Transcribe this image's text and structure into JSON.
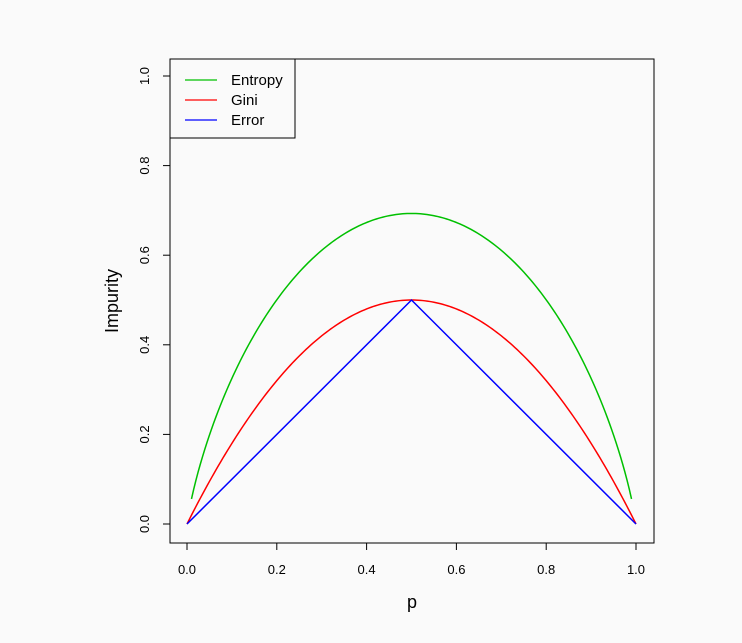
{
  "chart_data": {
    "type": "line",
    "title": "",
    "xlabel": "p",
    "ylabel": "Impurity",
    "xlim": [
      0,
      1
    ],
    "ylim": [
      0,
      1
    ],
    "x_ticks": [
      "0.0",
      "0.2",
      "0.4",
      "0.6",
      "0.8",
      "1.0"
    ],
    "y_ticks": [
      "0.0",
      "0.2",
      "0.4",
      "0.6",
      "0.8",
      "1.0"
    ],
    "grid": false,
    "legend_position": "top-left",
    "x": [
      0.01,
      0.05,
      0.1,
      0.15,
      0.2,
      0.25,
      0.3,
      0.35,
      0.4,
      0.45,
      0.5,
      0.55,
      0.6,
      0.65,
      0.7,
      0.75,
      0.8,
      0.85,
      0.9,
      0.95,
      0.99
    ],
    "series": [
      {
        "name": "Entropy",
        "color": "#00c000",
        "x": [
          0.01,
          0.05,
          0.1,
          0.15,
          0.2,
          0.25,
          0.3,
          0.35,
          0.4,
          0.45,
          0.5,
          0.55,
          0.6,
          0.65,
          0.7,
          0.75,
          0.8,
          0.85,
          0.9,
          0.95,
          0.99
        ],
        "values": [
          0.056,
          0.199,
          0.325,
          0.423,
          0.5,
          0.562,
          0.611,
          0.647,
          0.673,
          0.688,
          0.693,
          0.688,
          0.673,
          0.647,
          0.611,
          0.562,
          0.5,
          0.423,
          0.325,
          0.199,
          0.056
        ]
      },
      {
        "name": "Gini",
        "color": "#ff0000",
        "x": [
          0,
          0.05,
          0.1,
          0.15,
          0.2,
          0.25,
          0.3,
          0.35,
          0.4,
          0.45,
          0.5,
          0.55,
          0.6,
          0.65,
          0.7,
          0.75,
          0.8,
          0.85,
          0.9,
          0.95,
          1.0
        ],
        "values": [
          0.0,
          0.095,
          0.18,
          0.255,
          0.32,
          0.375,
          0.42,
          0.455,
          0.48,
          0.495,
          0.5,
          0.495,
          0.48,
          0.455,
          0.42,
          0.375,
          0.32,
          0.255,
          0.18,
          0.095,
          0.0
        ]
      },
      {
        "name": "Error",
        "color": "#0000ff",
        "x": [
          0,
          0.5,
          1.0
        ],
        "values": [
          0.0,
          0.5,
          0.0
        ]
      }
    ]
  }
}
